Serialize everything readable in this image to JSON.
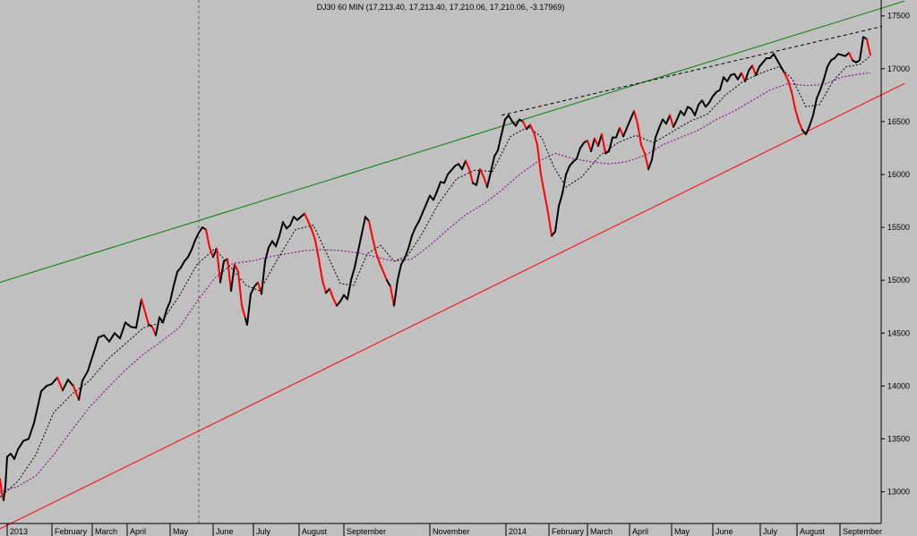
{
  "chart_data": {
    "type": "line",
    "title": "DJ30 60 MIN (17,213.40, 17,213.40, 17,210.06, 17,210.06, -3.17969)",
    "ylim": [
      12700,
      17650
    ],
    "y_ticks": [
      13000,
      13500,
      14000,
      14500,
      15000,
      15500,
      16000,
      16500,
      17000,
      17500
    ],
    "x_ticks": [
      "2013",
      "February",
      "March",
      "April",
      "May",
      "June",
      "July",
      "August",
      "September",
      "November",
      "2014",
      "February",
      "March",
      "April",
      "May",
      "June",
      "July",
      "August",
      "September"
    ],
    "grid": false,
    "legend": "none",
    "colors": {
      "background": "#c0c0c0",
      "price": "#000000",
      "price_down": "#ff0000",
      "ma_fast": "#000000",
      "ma_slow": "#800080",
      "upper_channel": "#008000",
      "lower_channel": "#ff0000",
      "dashed_trend": "#000000"
    },
    "price": [
      [
        0,
        13120
      ],
      [
        2,
        12990
      ],
      [
        4,
        12920
      ],
      [
        6,
        13050
      ],
      [
        8,
        13330
      ],
      [
        12,
        13360
      ],
      [
        16,
        13310
      ],
      [
        20,
        13400
      ],
      [
        26,
        13480
      ],
      [
        32,
        13500
      ],
      [
        38,
        13650
      ],
      [
        42,
        13800
      ],
      [
        46,
        13950
      ],
      [
        52,
        14000
      ],
      [
        58,
        14020
      ],
      [
        64,
        14080
      ],
      [
        70,
        13960
      ],
      [
        76,
        14060
      ],
      [
        82,
        14000
      ],
      [
        88,
        13870
      ],
      [
        92,
        14050
      ],
      [
        98,
        14140
      ],
      [
        104,
        14300
      ],
      [
        110,
        14460
      ],
      [
        116,
        14480
      ],
      [
        122,
        14420
      ],
      [
        128,
        14500
      ],
      [
        134,
        14450
      ],
      [
        140,
        14600
      ],
      [
        146,
        14560
      ],
      [
        152,
        14550
      ],
      [
        158,
        14820
      ],
      [
        162,
        14700
      ],
      [
        166,
        14580
      ],
      [
        170,
        14560
      ],
      [
        174,
        14480
      ],
      [
        178,
        14650
      ],
      [
        182,
        14600
      ],
      [
        186,
        14720
      ],
      [
        190,
        14800
      ],
      [
        194,
        14950
      ],
      [
        198,
        15080
      ],
      [
        202,
        15120
      ],
      [
        206,
        15180
      ],
      [
        210,
        15220
      ],
      [
        214,
        15290
      ],
      [
        218,
        15380
      ],
      [
        222,
        15450
      ],
      [
        226,
        15500
      ],
      [
        230,
        15480
      ],
      [
        234,
        15310
      ],
      [
        238,
        15220
      ],
      [
        242,
        15300
      ],
      [
        246,
        14980
      ],
      [
        250,
        15180
      ],
      [
        254,
        15200
      ],
      [
        258,
        14900
      ],
      [
        262,
        15150
      ],
      [
        266,
        15080
      ],
      [
        270,
        14760
      ],
      [
        274,
        14640
      ],
      [
        276,
        14580
      ],
      [
        280,
        14870
      ],
      [
        284,
        14940
      ],
      [
        288,
        14980
      ],
      [
        292,
        14870
      ],
      [
        296,
        15180
      ],
      [
        300,
        15310
      ],
      [
        304,
        15370
      ],
      [
        308,
        15320
      ],
      [
        312,
        15420
      ],
      [
        316,
        15550
      ],
      [
        320,
        15490
      ],
      [
        324,
        15520
      ],
      [
        328,
        15600
      ],
      [
        332,
        15570
      ],
      [
        336,
        15600
      ],
      [
        340,
        15630
      ],
      [
        344,
        15560
      ],
      [
        348,
        15480
      ],
      [
        352,
        15380
      ],
      [
        356,
        15200
      ],
      [
        360,
        15000
      ],
      [
        364,
        14880
      ],
      [
        368,
        14920
      ],
      [
        372,
        14830
      ],
      [
        376,
        14760
      ],
      [
        380,
        14800
      ],
      [
        384,
        14860
      ],
      [
        388,
        14820
      ],
      [
        392,
        15000
      ],
      [
        396,
        15120
      ],
      [
        400,
        15280
      ],
      [
        404,
        15440
      ],
      [
        408,
        15600
      ],
      [
        412,
        15560
      ],
      [
        416,
        15400
      ],
      [
        420,
        15260
      ],
      [
        424,
        15160
      ],
      [
        428,
        15080
      ],
      [
        432,
        15000
      ],
      [
        436,
        14940
      ],
      [
        440,
        14760
      ],
      [
        444,
        15000
      ],
      [
        448,
        15150
      ],
      [
        452,
        15210
      ],
      [
        456,
        15300
      ],
      [
        460,
        15420
      ],
      [
        464,
        15500
      ],
      [
        468,
        15560
      ],
      [
        472,
        15640
      ],
      [
        476,
        15720
      ],
      [
        480,
        15800
      ],
      [
        484,
        15760
      ],
      [
        488,
        15840
      ],
      [
        492,
        15930
      ],
      [
        496,
        15920
      ],
      [
        500,
        16000
      ],
      [
        504,
        16040
      ],
      [
        508,
        16080
      ],
      [
        512,
        16100
      ],
      [
        516,
        16050
      ],
      [
        520,
        16130
      ],
      [
        524,
        16050
      ],
      [
        528,
        15920
      ],
      [
        532,
        15900
      ],
      [
        536,
        16050
      ],
      [
        540,
        15980
      ],
      [
        544,
        15880
      ],
      [
        548,
        16020
      ],
      [
        552,
        16170
      ],
      [
        556,
        16230
      ],
      [
        560,
        16380
      ],
      [
        564,
        16520
      ],
      [
        568,
        16560
      ],
      [
        572,
        16500
      ],
      [
        576,
        16460
      ],
      [
        580,
        16520
      ],
      [
        584,
        16500
      ],
      [
        588,
        16430
      ],
      [
        592,
        16470
      ],
      [
        596,
        16400
      ],
      [
        600,
        16280
      ],
      [
        604,
        16000
      ],
      [
        608,
        15820
      ],
      [
        612,
        15640
      ],
      [
        616,
        15420
      ],
      [
        620,
        15460
      ],
      [
        624,
        15700
      ],
      [
        628,
        15820
      ],
      [
        632,
        16000
      ],
      [
        636,
        16080
      ],
      [
        640,
        16120
      ],
      [
        644,
        16150
      ],
      [
        648,
        16250
      ],
      [
        652,
        16300
      ],
      [
        656,
        16320
      ],
      [
        660,
        16220
      ],
      [
        664,
        16340
      ],
      [
        668,
        16270
      ],
      [
        672,
        16380
      ],
      [
        676,
        16200
      ],
      [
        680,
        16220
      ],
      [
        684,
        16350
      ],
      [
        688,
        16350
      ],
      [
        692,
        16440
      ],
      [
        696,
        16360
      ],
      [
        700,
        16440
      ],
      [
        704,
        16520
      ],
      [
        708,
        16600
      ],
      [
        712,
        16480
      ],
      [
        716,
        16280
      ],
      [
        720,
        16200
      ],
      [
        724,
        16050
      ],
      [
        728,
        16140
      ],
      [
        732,
        16350
      ],
      [
        736,
        16440
      ],
      [
        740,
        16520
      ],
      [
        744,
        16480
      ],
      [
        748,
        16560
      ],
      [
        752,
        16450
      ],
      [
        756,
        16520
      ],
      [
        760,
        16600
      ],
      [
        764,
        16560
      ],
      [
        768,
        16640
      ],
      [
        772,
        16620
      ],
      [
        776,
        16560
      ],
      [
        780,
        16660
      ],
      [
        784,
        16700
      ],
      [
        788,
        16640
      ],
      [
        792,
        16680
      ],
      [
        796,
        16740
      ],
      [
        800,
        16780
      ],
      [
        804,
        16800
      ],
      [
        808,
        16920
      ],
      [
        812,
        16880
      ],
      [
        816,
        16940
      ],
      [
        820,
        16950
      ],
      [
        824,
        16900
      ],
      [
        828,
        16960
      ],
      [
        832,
        16880
      ],
      [
        836,
        16980
      ],
      [
        840,
        17030
      ],
      [
        844,
        16940
      ],
      [
        848,
        17020
      ],
      [
        852,
        17060
      ],
      [
        856,
        17100
      ],
      [
        860,
        17100
      ],
      [
        864,
        17140
      ],
      [
        868,
        17080
      ],
      [
        872,
        17020
      ],
      [
        876,
        16960
      ],
      [
        880,
        16890
      ],
      [
        884,
        16780
      ],
      [
        888,
        16620
      ],
      [
        892,
        16500
      ],
      [
        896,
        16420
      ],
      [
        900,
        16380
      ],
      [
        904,
        16460
      ],
      [
        908,
        16560
      ],
      [
        912,
        16720
      ],
      [
        916,
        16800
      ],
      [
        920,
        16900
      ],
      [
        924,
        17020
      ],
      [
        928,
        17080
      ],
      [
        932,
        17100
      ],
      [
        936,
        17140
      ],
      [
        940,
        17130
      ],
      [
        944,
        17120
      ],
      [
        948,
        17150
      ],
      [
        952,
        17080
      ],
      [
        956,
        17060
      ],
      [
        960,
        17080
      ],
      [
        964,
        17300
      ],
      [
        968,
        17280
      ],
      [
        970,
        17200
      ],
      [
        972,
        17130
      ]
    ],
    "ma_fast": [
      [
        0,
        12950
      ],
      [
        20,
        13100
      ],
      [
        40,
        13350
      ],
      [
        60,
        13750
      ],
      [
        80,
        13920
      ],
      [
        100,
        14050
      ],
      [
        120,
        14250
      ],
      [
        140,
        14400
      ],
      [
        160,
        14550
      ],
      [
        180,
        14600
      ],
      [
        200,
        14850
      ],
      [
        220,
        15150
      ],
      [
        240,
        15300
      ],
      [
        260,
        15100
      ],
      [
        275,
        14950
      ],
      [
        290,
        14900
      ],
      [
        310,
        15200
      ],
      [
        330,
        15480
      ],
      [
        350,
        15520
      ],
      [
        365,
        15250
      ],
      [
        380,
        14970
      ],
      [
        395,
        14950
      ],
      [
        410,
        15250
      ],
      [
        425,
        15330
      ],
      [
        440,
        15180
      ],
      [
        455,
        15230
      ],
      [
        470,
        15420
      ],
      [
        490,
        15730
      ],
      [
        510,
        15960
      ],
      [
        530,
        16040
      ],
      [
        550,
        16030
      ],
      [
        570,
        16360
      ],
      [
        590,
        16450
      ],
      [
        605,
        16350
      ],
      [
        618,
        16080
      ],
      [
        632,
        15880
      ],
      [
        650,
        15980
      ],
      [
        670,
        16180
      ],
      [
        690,
        16300
      ],
      [
        710,
        16370
      ],
      [
        730,
        16300
      ],
      [
        750,
        16400
      ],
      [
        770,
        16500
      ],
      [
        790,
        16570
      ],
      [
        810,
        16750
      ],
      [
        830,
        16880
      ],
      [
        850,
        16960
      ],
      [
        870,
        17020
      ],
      [
        885,
        16900
      ],
      [
        900,
        16640
      ],
      [
        915,
        16660
      ],
      [
        930,
        16880
      ],
      [
        945,
        17020
      ],
      [
        960,
        17040
      ],
      [
        972,
        17120
      ]
    ],
    "ma_slow": [
      [
        0,
        13000
      ],
      [
        20,
        13050
      ],
      [
        40,
        13150
      ],
      [
        60,
        13350
      ],
      [
        80,
        13580
      ],
      [
        100,
        13800
      ],
      [
        120,
        13980
      ],
      [
        140,
        14150
      ],
      [
        160,
        14300
      ],
      [
        180,
        14420
      ],
      [
        200,
        14550
      ],
      [
        220,
        14800
      ],
      [
        240,
        15020
      ],
      [
        260,
        15160
      ],
      [
        280,
        15180
      ],
      [
        300,
        15220
      ],
      [
        320,
        15250
      ],
      [
        340,
        15280
      ],
      [
        360,
        15290
      ],
      [
        380,
        15280
      ],
      [
        400,
        15260
      ],
      [
        420,
        15220
      ],
      [
        440,
        15180
      ],
      [
        460,
        15200
      ],
      [
        480,
        15330
      ],
      [
        500,
        15480
      ],
      [
        520,
        15620
      ],
      [
        540,
        15720
      ],
      [
        560,
        15850
      ],
      [
        580,
        16000
      ],
      [
        600,
        16120
      ],
      [
        620,
        16200
      ],
      [
        640,
        16150
      ],
      [
        660,
        16120
      ],
      [
        680,
        16100
      ],
      [
        700,
        16120
      ],
      [
        720,
        16180
      ],
      [
        740,
        16280
      ],
      [
        760,
        16350
      ],
      [
        780,
        16420
      ],
      [
        800,
        16520
      ],
      [
        820,
        16600
      ],
      [
        840,
        16700
      ],
      [
        860,
        16800
      ],
      [
        880,
        16860
      ],
      [
        900,
        16840
      ],
      [
        920,
        16850
      ],
      [
        940,
        16920
      ],
      [
        960,
        16950
      ],
      [
        972,
        16960
      ]
    ],
    "trend_lines": [
      {
        "style": "upper_channel",
        "from": [
          0,
          14980
        ],
        "to": [
          1010,
          17640
        ]
      },
      {
        "style": "lower_channel",
        "from": [
          0,
          12650
        ],
        "to": [
          1010,
          16860
        ]
      },
      {
        "style": "dashed_trend",
        "from": [
          560,
          16560
        ],
        "to": [
          985,
          17400
        ]
      }
    ],
    "vertical_marker_x": 222
  }
}
